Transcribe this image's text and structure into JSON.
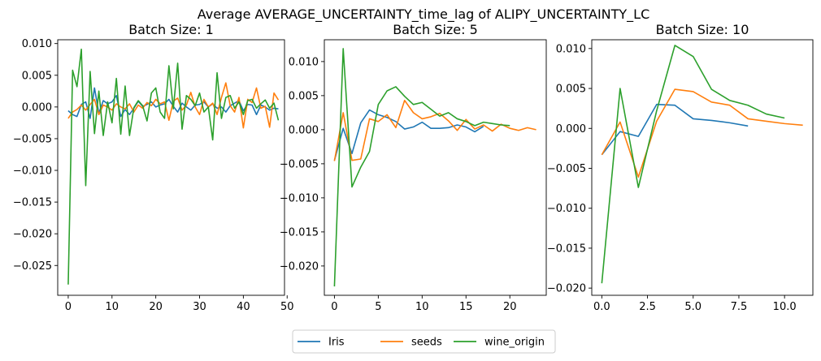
{
  "suptitle": "Average AVERAGE_UNCERTAINTY_time_lag of ALIPY_UNCERTAINTY_LC",
  "legend": {
    "placement": "bottom-center",
    "entries": [
      "Iris",
      "seeds",
      "wine_origin"
    ]
  },
  "colors": {
    "Iris": "#1f77b4",
    "seeds": "#ff7f0e",
    "wine_origin": "#2ca02c"
  },
  "chart_data": [
    {
      "type": "line",
      "title": "Batch Size: 1",
      "xlim": [
        -2.4,
        49.4
      ],
      "ylim": [
        -0.0297,
        0.0106
      ],
      "xticks": [
        0,
        10,
        20,
        30,
        40,
        50
      ],
      "xtick_labels": [
        "0",
        "10",
        "20",
        "30",
        "40",
        "50"
      ],
      "yticks": [
        -0.025,
        -0.02,
        -0.015,
        -0.01,
        -0.005,
        0.0,
        0.005,
        0.01
      ],
      "ytick_labels": [
        "−0.025",
        "−0.020",
        "−0.015",
        "−0.010",
        "−0.005",
        "0.000",
        "0.005",
        "0.010"
      ],
      "series": [
        {
          "name": "Iris",
          "x": [
            0,
            1,
            2,
            3,
            4,
            5,
            6,
            7,
            8,
            9,
            10,
            11,
            12,
            13,
            14,
            15,
            16,
            17,
            18,
            19,
            20,
            21,
            22,
            23,
            24,
            25,
            26,
            27,
            28,
            29,
            30,
            31,
            32,
            33,
            34,
            35,
            36,
            37,
            38,
            39,
            40,
            41,
            42,
            43,
            44,
            45,
            46,
            47,
            48
          ],
          "y": [
            -0.0006,
            -0.0012,
            -0.0015,
            0.0004,
            0.0008,
            -0.0018,
            0.003,
            -0.001,
            0.001,
            0.0005,
            0.0008,
            0.0018,
            -0.0015,
            -0.0004,
            -0.0012,
            -0.0002,
            0.0009,
            0.0001,
            0.0004,
            0.0008,
            0.0,
            0.0003,
            0.0005,
            0.0012,
            0.0001,
            -0.0008,
            0.0006,
            0.0,
            -0.0005,
            0.0003,
            0.0004,
            0.0008,
            0.0,
            0.0005,
            -0.0002,
            0.0,
            -0.0008,
            0.0002,
            0.0006,
            0.001,
            -0.0006,
            0.0004,
            0.0003,
            -0.0012,
            0.0003,
            0.0,
            -0.0005,
            -0.0002,
            -0.0003
          ]
        },
        {
          "name": "seeds",
          "x": [
            0,
            1,
            2,
            3,
            4,
            5,
            6,
            7,
            8,
            9,
            10,
            11,
            12,
            13,
            14,
            15,
            16,
            17,
            18,
            19,
            20,
            21,
            22,
            23,
            24,
            25,
            26,
            27,
            28,
            29,
            30,
            31,
            32,
            33,
            34,
            35,
            36,
            37,
            38,
            39,
            40,
            41,
            42,
            43,
            44,
            45,
            46,
            47,
            48
          ],
          "y": [
            -0.0018,
            -0.0008,
            -0.0004,
            0.0003,
            -0.0005,
            0.0004,
            0.0012,
            -0.0012,
            0.0003,
            0.0,
            -0.0005,
            0.0005,
            0.0,
            -0.0003,
            0.0005,
            -0.0008,
            0.0003,
            -0.0002,
            0.0007,
            0.0002,
            0.0012,
            0.0005,
            0.0008,
            -0.0021,
            0.0009,
            0.0014,
            -0.0005,
            0.0003,
            0.0023,
            0.0,
            -0.0012,
            0.0012,
            0.0,
            0.0006,
            -0.0012,
            0.0015,
            0.0038,
            0.0002,
            -0.0008,
            0.0015,
            -0.0033,
            0.0012,
            0.0007,
            0.003,
            -0.0002,
            0.0001,
            -0.0032,
            0.0022,
            0.0011
          ]
        },
        {
          "name": "wine_origin",
          "x": [
            0,
            1,
            2,
            3,
            4,
            5,
            6,
            7,
            8,
            9,
            10,
            11,
            12,
            13,
            14,
            15,
            16,
            17,
            18,
            19,
            20,
            21,
            22,
            23,
            24,
            25,
            26,
            27,
            28,
            29,
            30,
            31,
            32,
            33,
            34,
            35,
            36,
            37,
            38,
            39,
            40,
            41,
            42,
            43,
            44,
            45,
            46,
            47,
            48
          ],
          "y": [
            -0.028,
            0.0058,
            0.0032,
            0.0091,
            -0.0124,
            0.0056,
            -0.0042,
            0.0025,
            -0.0045,
            0.0008,
            -0.0025,
            0.0045,
            -0.0043,
            0.0033,
            -0.0045,
            -0.0001,
            0.001,
            0.0002,
            -0.0022,
            0.0022,
            0.003,
            -0.0008,
            -0.0018,
            0.0065,
            -0.0003,
            0.0069,
            -0.0035,
            0.0018,
            0.0012,
            0.0002,
            0.0022,
            -0.0008,
            0.0,
            -0.0052,
            0.0054,
            -0.0018,
            0.0015,
            0.0018,
            -0.0002,
            0.0008,
            -0.0012,
            0.001,
            0.0012,
            -0.0002,
            0.0005,
            0.0011,
            -0.0002,
            0.0006,
            -0.0021
          ]
        }
      ]
    },
    {
      "type": "line",
      "title": "Batch Size: 5",
      "xlim": [
        -1.15,
        24.15
      ],
      "ylim": [
        -0.0243,
        0.0132
      ],
      "xticks": [
        0,
        5,
        10,
        15,
        20
      ],
      "xtick_labels": [
        "0",
        "5",
        "10",
        "15",
        "20"
      ],
      "yticks": [
        -0.02,
        -0.015,
        -0.01,
        -0.005,
        0.0,
        0.005,
        0.01
      ],
      "ytick_labels": [
        "−0.020",
        "−0.015",
        "−0.010",
        "−0.005",
        "0.000",
        "0.005",
        "0.010"
      ],
      "series": [
        {
          "name": "Iris",
          "x": [
            0,
            1,
            2,
            3,
            4,
            5,
            6,
            7,
            8,
            9,
            10,
            11,
            12,
            13,
            14,
            15,
            16,
            17
          ],
          "y": [
            -0.0045,
            0.0002,
            -0.0035,
            0.001,
            0.0029,
            0.0022,
            0.0018,
            0.0012,
            0.0001,
            0.0004,
            0.0011,
            0.0002,
            0.0002,
            0.0003,
            0.0007,
            0.0004,
            -0.0003,
            0.0005
          ]
        },
        {
          "name": "seeds",
          "x": [
            0,
            1,
            2,
            3,
            4,
            5,
            6,
            7,
            8,
            9,
            10,
            11,
            12,
            13,
            14,
            15,
            16,
            17,
            18,
            19,
            20,
            21,
            22,
            23
          ],
          "y": [
            -0.0046,
            0.0025,
            -0.0045,
            -0.0043,
            0.0016,
            0.0012,
            0.0022,
            0.0003,
            0.0043,
            0.0025,
            0.0016,
            0.0019,
            0.0024,
            0.0013,
            -0.0001,
            0.0015,
            0.0001,
            0.0007,
            -0.0002,
            0.0008,
            0.0002,
            -0.0001,
            0.0003,
            0.0
          ]
        },
        {
          "name": "wine_origin",
          "x": [
            0,
            1,
            2,
            3,
            4,
            5,
            6,
            7,
            8,
            9,
            10,
            11,
            12,
            13,
            14,
            15,
            16,
            17,
            18,
            19,
            20
          ],
          "y": [
            -0.023,
            0.0119,
            -0.0084,
            -0.0055,
            -0.0032,
            0.0037,
            0.0057,
            0.0063,
            0.0049,
            0.0037,
            0.004,
            0.003,
            0.002,
            0.0025,
            0.0016,
            0.0012,
            0.0006,
            0.0011,
            0.0009,
            0.0007,
            0.0006
          ]
        }
      ]
    },
    {
      "type": "line",
      "title": "Batch Size: 10",
      "xlim": [
        -0.55,
        11.55
      ],
      "ylim": [
        -0.0209,
        0.0111
      ],
      "xticks": [
        0.0,
        2.5,
        5.0,
        7.5,
        10.0
      ],
      "xtick_labels": [
        "0.0",
        "2.5",
        "5.0",
        "7.5",
        "10.0"
      ],
      "yticks": [
        -0.02,
        -0.015,
        -0.01,
        -0.005,
        0.0,
        0.005,
        0.01
      ],
      "ytick_labels": [
        "−0.020",
        "−0.015",
        "−0.010",
        "−0.005",
        "0.000",
        "0.005",
        "0.010"
      ],
      "series": [
        {
          "name": "Iris",
          "x": [
            0,
            1,
            2,
            3,
            4,
            5,
            6,
            7,
            8
          ],
          "y": [
            -0.0033,
            -0.0004,
            -0.001,
            0.003,
            0.0029,
            0.0012,
            0.001,
            0.0007,
            0.0003
          ]
        },
        {
          "name": "seeds",
          "x": [
            0,
            1,
            2,
            3,
            4,
            5,
            6,
            7,
            8,
            9,
            10,
            11
          ],
          "y": [
            -0.0033,
            0.0008,
            -0.0061,
            0.0009,
            0.0049,
            0.0046,
            0.0033,
            0.0029,
            0.0012,
            0.0009,
            0.0006,
            0.0004
          ]
        },
        {
          "name": "wine_origin",
          "x": [
            0,
            1,
            2,
            3,
            4,
            5,
            6,
            7,
            8,
            9,
            10
          ],
          "y": [
            -0.0194,
            0.005,
            -0.0074,
            0.0022,
            0.0104,
            0.009,
            0.0049,
            0.0035,
            0.0029,
            0.0018,
            0.0013
          ]
        }
      ]
    }
  ]
}
